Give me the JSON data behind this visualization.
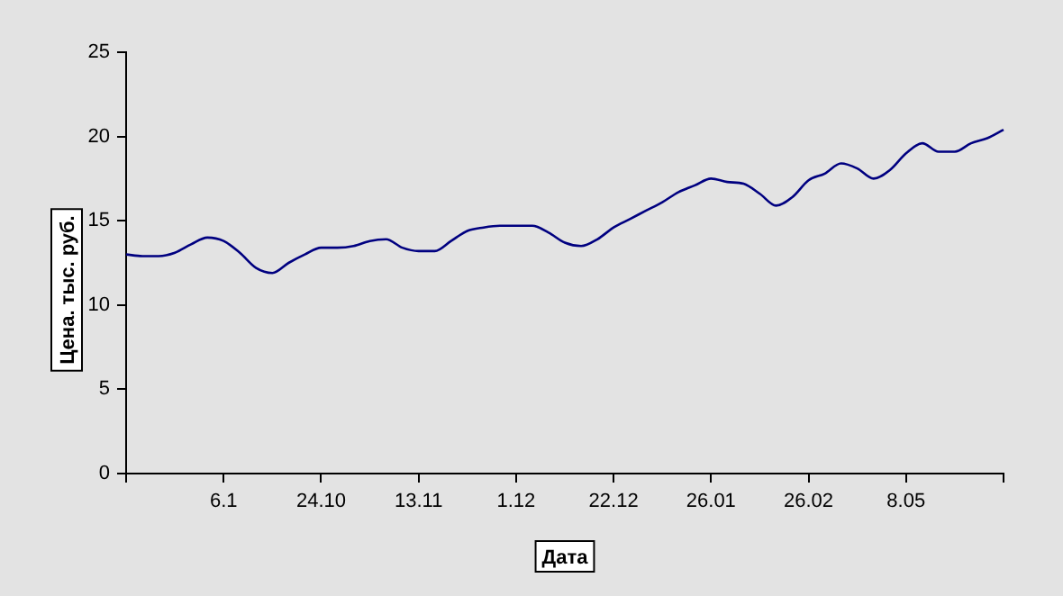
{
  "chart_data": {
    "type": "line",
    "xlabel": "Дата",
    "ylabel": "Цена. тыс. руб.",
    "categories": [
      null,
      null,
      null,
      null,
      null,
      null,
      "6.1",
      null,
      null,
      null,
      null,
      null,
      "24.10",
      null,
      null,
      null,
      null,
      null,
      "13.11",
      null,
      null,
      null,
      null,
      null,
      "1.12",
      null,
      null,
      null,
      null,
      null,
      "22.12",
      null,
      null,
      null,
      null,
      null,
      "26.01",
      null,
      null,
      null,
      null,
      null,
      "26.02",
      null,
      null,
      null,
      null,
      null,
      "8.05",
      null,
      null,
      null,
      null,
      null,
      null
    ],
    "series": [
      {
        "color": "#000080",
        "values": [
          13.0,
          12.9,
          12.9,
          13.1,
          13.6,
          14.0,
          13.8,
          13.1,
          12.2,
          11.9,
          12.5,
          13.0,
          13.4,
          13.4,
          13.5,
          13.8,
          13.9,
          13.4,
          13.2,
          13.2,
          13.8,
          14.4,
          14.6,
          14.7,
          14.7,
          14.7,
          14.3,
          13.7,
          13.5,
          13.9,
          14.6,
          15.1,
          15.6,
          16.1,
          16.7,
          17.1,
          17.5,
          17.3,
          17.2,
          16.6,
          15.9,
          16.4,
          17.4,
          17.8,
          18.4,
          18.1,
          17.5,
          18.0,
          19.0,
          19.6,
          19.1,
          19.1,
          19.6,
          19.9,
          20.4
        ]
      }
    ],
    "ylim": [
      0,
      25
    ],
    "yticks": [
      0,
      5,
      10,
      15,
      20,
      25
    ],
    "grid": false,
    "legend": false,
    "marker": "none",
    "line_style": "solid"
  }
}
